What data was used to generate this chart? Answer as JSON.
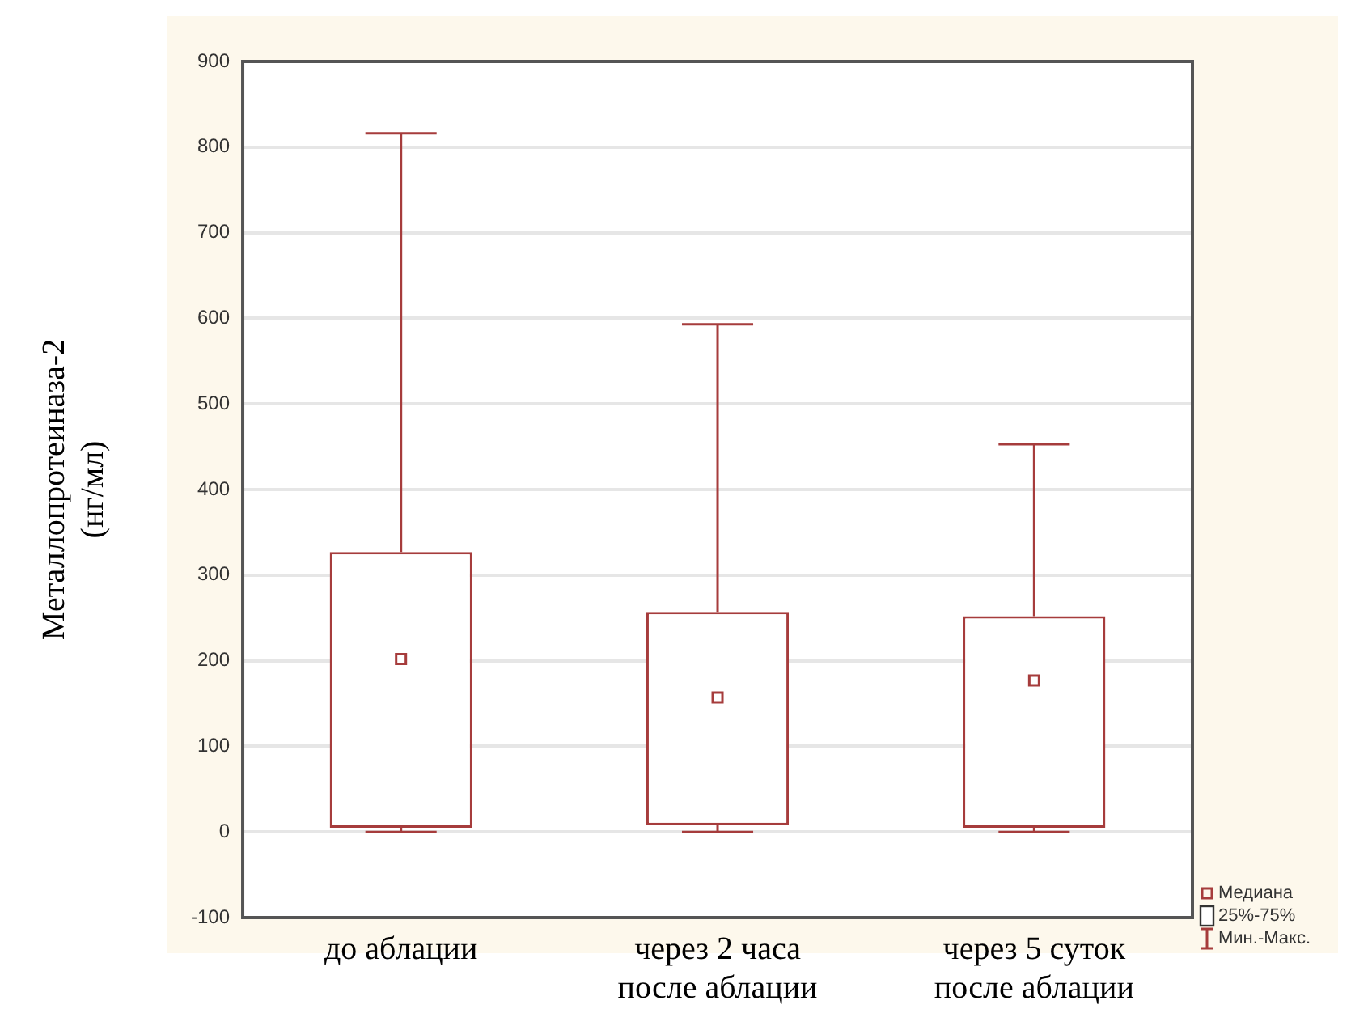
{
  "chart_data": {
    "type": "box",
    "ylabel": "Металлопротеиназа-2\n(нг/мл)",
    "categories": [
      "до аблации",
      "через 2 часа после аблации",
      "через 5 суток после аблации"
    ],
    "series": [
      {
        "color": "#a63c3c",
        "boxes": [
          {
            "low": 0,
            "q1": 5,
            "median": 202,
            "q3": 327,
            "high": 816
          },
          {
            "low": 0,
            "q1": 8,
            "median": 157,
            "q3": 257,
            "high": 593
          },
          {
            "low": 0,
            "q1": 5,
            "median": 177,
            "q3": 252,
            "high": 453
          }
        ]
      }
    ],
    "ylim": [
      -100,
      900
    ],
    "yticks": [
      -100,
      0,
      100,
      200,
      300,
      400,
      500,
      600,
      700,
      800,
      900
    ],
    "grid": "y",
    "annotations": [
      "Медиана",
      "25%-75%",
      "Мин.-Макс."
    ]
  }
}
